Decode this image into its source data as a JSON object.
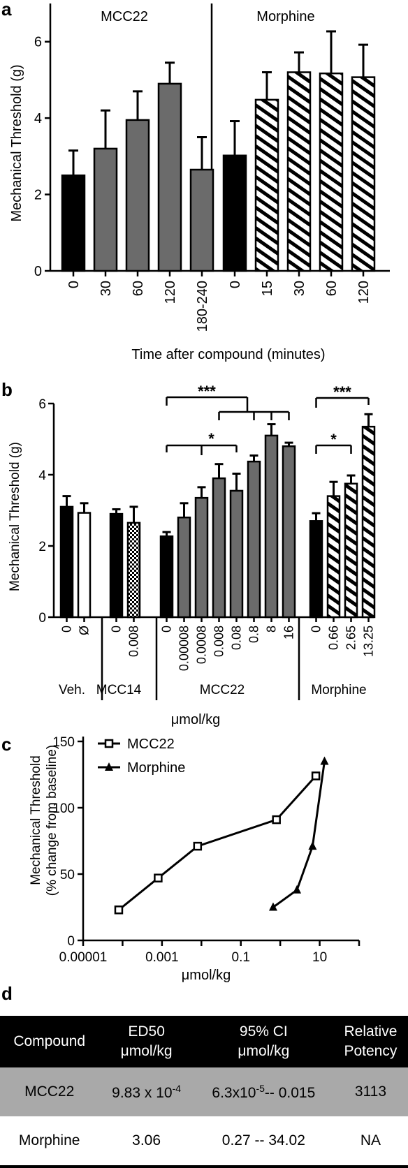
{
  "panels": {
    "a": "a",
    "b": "b",
    "c": "c",
    "d": "d"
  },
  "colors": {
    "control": "#000000",
    "mcc22": "#6b6b6b",
    "vehicle_empty": "#ffffff",
    "table_header": "#000000",
    "table_row": "#a9a9a9"
  },
  "chart_data": [
    {
      "panel": "a",
      "type": "bar",
      "ylabel": "Mechanical Threshold (g)",
      "xlabel": "Time after compound (minutes)",
      "ylim": [
        0,
        7
      ],
      "yticks": [
        0,
        2,
        4,
        6
      ],
      "groups": [
        {
          "label": "MCC22",
          "categories": [
            "0",
            "30",
            "60",
            "120",
            "180-240"
          ],
          "values": [
            2.5,
            3.2,
            3.95,
            4.9,
            2.65
          ],
          "errors": [
            0.65,
            1.0,
            0.75,
            0.55,
            0.85
          ],
          "fills": [
            "solid-black",
            "gray",
            "gray",
            "gray",
            "gray"
          ]
        },
        {
          "label": "Morphine",
          "categories": [
            "0",
            "15",
            "30",
            "60",
            "120"
          ],
          "values": [
            3.02,
            4.48,
            5.2,
            5.17,
            5.07
          ],
          "errors": [
            0.9,
            0.72,
            0.52,
            1.1,
            0.85
          ],
          "fills": [
            "solid-black",
            "hatched",
            "hatched",
            "hatched",
            "hatched"
          ]
        }
      ]
    },
    {
      "panel": "b",
      "type": "bar",
      "ylabel": "Mechanical Threshold (g)",
      "xlabel": "μmol/kg",
      "ylim": [
        0,
        6
      ],
      "yticks": [
        0,
        2,
        4,
        6
      ],
      "groups": [
        {
          "label": "Veh.",
          "categories": [
            "0",
            "Ø"
          ],
          "values": [
            3.1,
            2.93
          ],
          "errors": [
            0.3,
            0.27
          ],
          "fills": [
            "solid-black",
            "white"
          ]
        },
        {
          "label": "MCC14",
          "categories": [
            "0",
            "0.008"
          ],
          "values": [
            2.9,
            2.65
          ],
          "errors": [
            0.13,
            0.45
          ],
          "fills": [
            "solid-black",
            "checker"
          ]
        },
        {
          "label": "MCC22",
          "categories": [
            "0",
            "0.00008",
            "0.0008",
            "0.008",
            "0.08",
            "0.8",
            "8",
            "16"
          ],
          "values": [
            2.27,
            2.8,
            3.35,
            3.9,
            3.55,
            4.37,
            5.1,
            4.8
          ],
          "errors": [
            0.12,
            0.4,
            0.3,
            0.4,
            0.48,
            0.17,
            0.32,
            0.1
          ],
          "fills": [
            "solid-black",
            "gray",
            "gray",
            "gray",
            "gray",
            "gray",
            "gray",
            "gray"
          ]
        },
        {
          "label": "Morphine",
          "categories": [
            "0",
            "0.66",
            "2.65",
            "13.25"
          ],
          "values": [
            2.7,
            3.4,
            3.75,
            5.35
          ],
          "errors": [
            0.22,
            0.4,
            0.23,
            0.35
          ],
          "fills": [
            "solid-black",
            "hatched",
            "hatched",
            "hatched"
          ]
        }
      ],
      "significance": [
        "***",
        "*",
        "***",
        "*"
      ]
    },
    {
      "panel": "c",
      "type": "line",
      "ylabel_line1": "Mechanical Threshold",
      "ylabel_line2": "(% change from baseline)",
      "xlabel": "μmol/kg",
      "xscale": "log",
      "xlim": [
        1e-05,
        100
      ],
      "xticks": [
        "0.00001",
        "0.001",
        "0.1",
        "10"
      ],
      "ylim": [
        0,
        150
      ],
      "yticks": [
        0,
        50,
        100,
        150
      ],
      "legend_position": "top-left",
      "series": [
        {
          "name": "MCC22",
          "marker": "open-square",
          "x": [
            8e-05,
            0.0008,
            0.008,
            0.8,
            8
          ],
          "y": [
            23,
            47,
            71,
            91,
            124
          ]
        },
        {
          "name": "Morphine",
          "marker": "filled-triangle",
          "x": [
            0.66,
            2.65,
            6.6,
            13.25
          ],
          "y": [
            25,
            38,
            71,
            135
          ]
        }
      ]
    }
  ],
  "table": {
    "headers": [
      {
        "l1": "Compound",
        "l2": ""
      },
      {
        "l1": "ED50",
        "l2": "μmol/kg"
      },
      {
        "l1": "95% CI",
        "l2": "μmol/kg"
      },
      {
        "l1": "Relative",
        "l2": "Potency"
      }
    ],
    "rows": [
      {
        "compound": "MCC22",
        "ed50_base": "9.83 x 10",
        "ed50_exp": "-4",
        "ci_base": "6.3x10",
        "ci_exp": "-5",
        "ci_rest": "-- 0.015",
        "potency": "3113"
      },
      {
        "compound": "Morphine",
        "ed50": "3.06",
        "ci": "0.27 -- 34.02",
        "potency": "NA"
      }
    ]
  }
}
